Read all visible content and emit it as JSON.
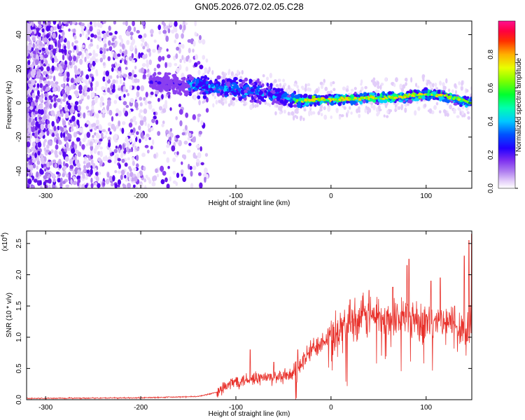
{
  "title": "GN05.2026.072.02.05.C28",
  "chart_data": [
    {
      "type": "heatmap",
      "name": "spectrogram",
      "xlabel": "Height of straight line (km)",
      "ylabel": "Frequency (Hz)",
      "xlim": [
        -320,
        148
      ],
      "ylim": [
        -50,
        48
      ],
      "x_ticks": [
        -300,
        -200,
        -100,
        0,
        100
      ],
      "y_ticks": [
        -40,
        -20,
        0,
        20,
        40
      ],
      "colorbar": {
        "label": "Normalized spectral amplitude",
        "range": [
          0,
          1
        ],
        "ticks": [
          0.0,
          0.2,
          0.4,
          0.6,
          0.8
        ],
        "tick_labels": [
          "0.0",
          "0.2",
          "0.4",
          "0.6",
          "0.8"
        ],
        "colors": [
          "#ffffff",
          "#d8b8f8",
          "#8a2be2",
          "#5500ff",
          "#0000ff",
          "#00c8ff",
          "#00ff80",
          "#80ff00",
          "#ffff00",
          "#ff8000",
          "#ff0000",
          "#ff1493"
        ]
      },
      "track_center": [
        [
          -185,
          12
        ],
        [
          -160,
          11
        ],
        [
          -140,
          10
        ],
        [
          -120,
          9
        ],
        [
          -100,
          8
        ],
        [
          -80,
          7
        ],
        [
          -60,
          5
        ],
        [
          -40,
          2
        ],
        [
          -30,
          1
        ],
        [
          -20,
          2
        ],
        [
          0,
          2
        ],
        [
          20,
          2.5
        ],
        [
          40,
          3
        ],
        [
          60,
          3
        ],
        [
          80,
          4
        ],
        [
          100,
          5
        ],
        [
          120,
          4
        ],
        [
          148,
          0
        ]
      ],
      "noise_region_km": [
        -320,
        -140
      ]
    },
    {
      "type": "line",
      "name": "snr",
      "xlabel": "Height of straight line (km)",
      "ylabel": "SNR (10 * v/v)",
      "y_multiplier_label": "(x10",
      "y_multiplier_exp": "4",
      "y_multiplier_close": ")",
      "xlim": [
        -320,
        148
      ],
      "ylim": [
        0,
        2.7
      ],
      "x_ticks": [
        -300,
        -200,
        -100,
        0,
        100
      ],
      "y_ticks": [
        0.0,
        0.5,
        1.0,
        1.5,
        2.0,
        2.5
      ],
      "y_tick_labels": [
        "0.0",
        "0.5",
        "1.0",
        "1.5",
        "2.0",
        "2.5"
      ],
      "color": "#e8302a",
      "envelope": [
        [
          -320,
          0.02
        ],
        [
          -200,
          0.03
        ],
        [
          -140,
          0.05
        ],
        [
          -120,
          0.12
        ],
        [
          -100,
          0.3
        ],
        [
          -80,
          0.35
        ],
        [
          -60,
          0.35
        ],
        [
          -50,
          0.36
        ],
        [
          -40,
          0.4
        ],
        [
          -30,
          0.6
        ],
        [
          -20,
          0.8
        ],
        [
          -10,
          0.95
        ],
        [
          0,
          1.05
        ],
        [
          10,
          1.15
        ],
        [
          20,
          1.25
        ],
        [
          30,
          1.3
        ],
        [
          40,
          1.32
        ],
        [
          50,
          1.35
        ],
        [
          60,
          1.3
        ],
        [
          70,
          1.32
        ],
        [
          80,
          1.35
        ],
        [
          90,
          1.3
        ],
        [
          100,
          1.25
        ],
        [
          110,
          1.2
        ],
        [
          120,
          1.2
        ],
        [
          130,
          1.2
        ],
        [
          140,
          1.15
        ],
        [
          148,
          1.1
        ]
      ],
      "peaks": [
        [
          -85,
          0.8
        ],
        [
          -60,
          0.6
        ],
        [
          -35,
          0.8
        ],
        [
          20,
          1.6
        ],
        [
          40,
          1.75
        ],
        [
          65,
          1.8
        ],
        [
          80,
          2.15
        ],
        [
          82,
          2.25
        ],
        [
          105,
          1.9
        ],
        [
          115,
          1.95
        ],
        [
          130,
          1.5
        ],
        [
          140,
          2.3
        ],
        [
          145,
          2.55
        ],
        [
          148,
          2.65
        ]
      ]
    }
  ]
}
